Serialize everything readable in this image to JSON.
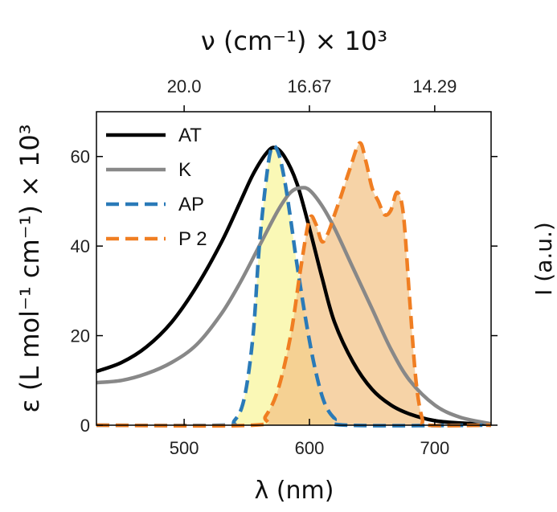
{
  "chart_data": {
    "type": "line",
    "xlabel": "λ (nm)",
    "ylabel": "ε (L mol⁻¹ cm⁻¹) × 10³",
    "y2label": "I (a.u.)",
    "top_xlabel": "ν (cm⁻¹) × 10³",
    "xlim": [
      430,
      745
    ],
    "ylim": [
      0,
      70
    ],
    "x_ticks": [
      500,
      600,
      700
    ],
    "x_tick_labels": [
      "500",
      "600",
      "700"
    ],
    "y_ticks": [
      0,
      20,
      40,
      60
    ],
    "y_tick_labels": [
      "0",
      "20",
      "40",
      "60"
    ],
    "top_ticks_nm": [
      500,
      600,
      700
    ],
    "top_tick_labels": [
      "20.0",
      "16.67",
      "14.29"
    ],
    "legend_position": "top-left",
    "series": [
      {
        "name": "AT",
        "color": "#000000",
        "style": "solid",
        "x": [
          430,
          450,
          470,
          490,
          510,
          530,
          545,
          555,
          565,
          572,
          580,
          590,
          600,
          610,
          620,
          635,
          650,
          665,
          680,
          700,
          720,
          745
        ],
        "y": [
          12,
          14,
          17.5,
          23,
          31,
          41,
          50,
          56,
          60.5,
          62,
          60,
          54,
          44,
          33,
          23,
          14,
          8,
          4.5,
          2.5,
          1,
          0.5,
          0.2
        ]
      },
      {
        "name": "K",
        "color": "#888888",
        "style": "solid",
        "x": [
          430,
          450,
          470,
          490,
          510,
          530,
          545,
          560,
          575,
          585,
          593,
          600,
          610,
          620,
          635,
          650,
          665,
          680,
          700,
          720,
          745
        ],
        "y": [
          9.5,
          10,
          11.5,
          14,
          18,
          25,
          32,
          40,
          48,
          52,
          53,
          52.5,
          49,
          44,
          35,
          26,
          17,
          10,
          4.5,
          1.8,
          0.3
        ]
      },
      {
        "name": "AP",
        "color": "#2a7ab8",
        "style": "dashed",
        "fill": "#f8f59a",
        "x": [
          430,
          530,
          540,
          548,
          555,
          560,
          566,
          570,
          575,
          580,
          585,
          590,
          598,
          605,
          612,
          620,
          630,
          745
        ],
        "y": [
          0,
          0,
          1,
          6,
          20,
          40,
          56,
          62,
          61,
          55,
          46,
          36,
          22,
          12,
          5,
          1.5,
          0,
          0
        ]
      },
      {
        "name": "P 2",
        "color": "#f07e22",
        "style": "dashed",
        "fill": "#f3c285",
        "x": [
          430,
          555,
          565,
          575,
          585,
          593,
          600,
          605,
          610,
          615,
          620,
          625,
          632,
          640,
          645,
          650,
          655,
          660,
          665,
          670,
          675,
          680,
          685,
          690,
          695,
          745
        ],
        "y": [
          0,
          0,
          2,
          8,
          20,
          35,
          46,
          45,
          41,
          43,
          47,
          51,
          57,
          63,
          59,
          53,
          50,
          47,
          48,
          52,
          47,
          28,
          10,
          1.5,
          0,
          0
        ]
      }
    ]
  }
}
